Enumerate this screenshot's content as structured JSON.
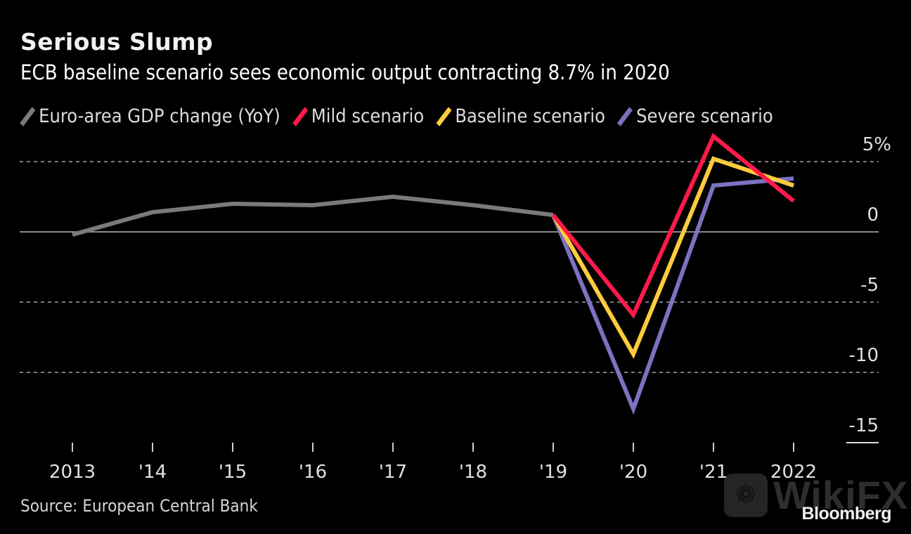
{
  "header": {
    "title": "Serious Slump",
    "subtitle": "ECB baseline scenario sees economic output contracting 8.7% in 2020"
  },
  "legend": [
    {
      "label": "Euro-area GDP change (YoY)",
      "color": "#7a7a7a"
    },
    {
      "label": "Mild scenario",
      "color": "#ff1a4a"
    },
    {
      "label": "Baseline scenario",
      "color": "#ffcc3d"
    },
    {
      "label": "Severe scenario",
      "color": "#7b72c0"
    }
  ],
  "footer": {
    "source": "Source: European Central Bank",
    "brand": "Bloomberg",
    "watermark": "WikiFX",
    "watermark_icon": "eagle-logo-icon"
  },
  "chart_data": {
    "type": "line",
    "title": "Serious Slump",
    "subtitle": "ECB baseline scenario sees economic output contracting 8.7% in 2020",
    "xlabel": "",
    "ylabel": "",
    "x": [
      2013,
      2014,
      2015,
      2016,
      2017,
      2018,
      2019,
      2020,
      2021,
      2022
    ],
    "x_tick_labels": [
      "2013",
      "'14",
      "'15",
      "'16",
      "'17",
      "'18",
      "'19",
      "'20",
      "'21",
      "2022"
    ],
    "ylim": [
      -15,
      5
    ],
    "y_ticks": [
      5,
      0,
      -5,
      -10,
      -15
    ],
    "y_tick_labels": [
      "5%",
      "0",
      "-5",
      "-10",
      "-15"
    ],
    "y_axis_side": "right",
    "grid": "dashed horizontal",
    "legend_position": "top",
    "series": [
      {
        "name": "Euro-area GDP change (YoY)",
        "color": "#7a7a7a",
        "x": [
          2013,
          2014,
          2015,
          2016,
          2017,
          2018,
          2019
        ],
        "values": [
          -0.2,
          1.4,
          2.0,
          1.9,
          2.5,
          1.9,
          1.2
        ]
      },
      {
        "name": "Mild scenario",
        "color": "#ff1a4a",
        "x": [
          2019,
          2020,
          2021,
          2022
        ],
        "values": [
          1.2,
          -5.9,
          6.8,
          2.2
        ]
      },
      {
        "name": "Baseline scenario",
        "color": "#ffcc3d",
        "x": [
          2019,
          2020,
          2021,
          2022
        ],
        "values": [
          1.2,
          -8.7,
          5.2,
          3.3
        ]
      },
      {
        "name": "Severe scenario",
        "color": "#7b72c0",
        "x": [
          2019,
          2020,
          2021,
          2022
        ],
        "values": [
          1.2,
          -12.6,
          3.3,
          3.8
        ]
      }
    ]
  }
}
